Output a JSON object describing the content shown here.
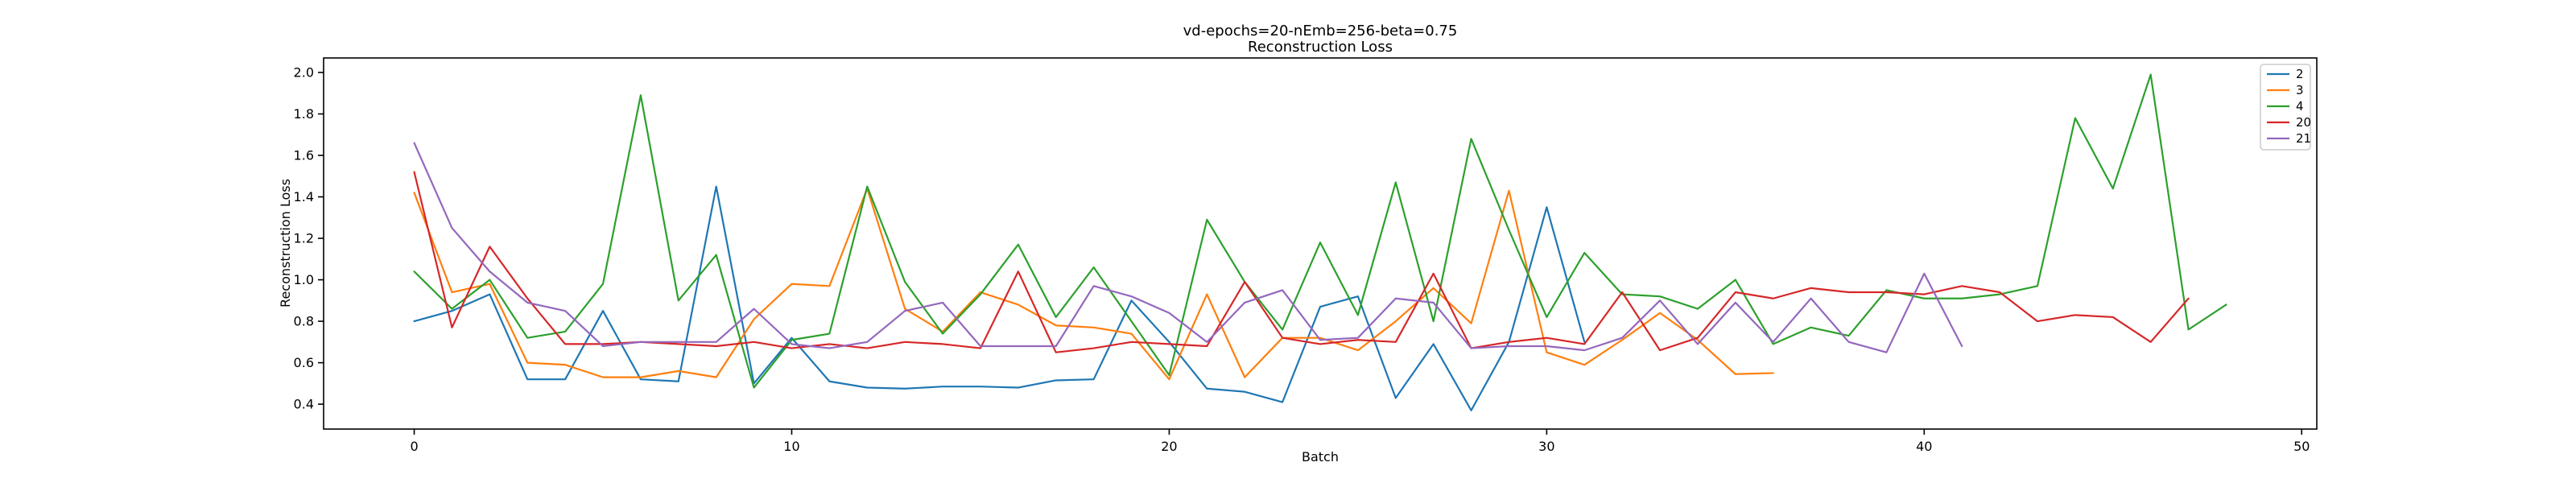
{
  "chart_data": {
    "type": "line",
    "title": "vd-epochs=20-nEmb=256-beta=0.75",
    "subtitle": "Reconstruction Loss",
    "xlabel": "Batch",
    "ylabel": "Reconstruction Loss",
    "xlim": [
      -2.4,
      50.4
    ],
    "ylim": [
      0.28,
      2.07
    ],
    "xticks": [
      0,
      10,
      20,
      30,
      40,
      50
    ],
    "yticks": [
      0.4,
      0.6,
      0.8,
      1.0,
      1.2,
      1.4,
      1.6,
      1.8,
      2.0
    ],
    "xtick_labels": [
      "0",
      "10",
      "20",
      "30",
      "40",
      "50"
    ],
    "ytick_labels": [
      "0.4",
      "0.6",
      "0.8",
      "1.0",
      "1.2",
      "1.4",
      "1.6",
      "1.8",
      "2.0"
    ],
    "grid": false,
    "legend_position": "top-right",
    "series": [
      {
        "name": "2",
        "color": "#1f77b4",
        "values": [
          0.8,
          0.85,
          0.93,
          0.52,
          0.52,
          0.85,
          0.52,
          0.51,
          1.45,
          0.5,
          0.72,
          0.51,
          0.48,
          0.475,
          0.485,
          0.485,
          0.48,
          0.515,
          0.52,
          0.9,
          0.7,
          0.475,
          0.46,
          0.41,
          0.87,
          0.92,
          0.43,
          0.69,
          0.37,
          0.7,
          1.35,
          0.7
        ]
      },
      {
        "name": "3",
        "color": "#ff7f0e",
        "values": [
          1.42,
          0.94,
          0.98,
          0.6,
          0.59,
          0.53,
          0.53,
          0.56,
          0.53,
          0.81,
          0.98,
          0.97,
          1.44,
          0.86,
          0.75,
          0.94,
          0.88,
          0.78,
          0.77,
          0.74,
          0.52,
          0.93,
          0.53,
          0.72,
          0.72,
          0.66,
          0.8,
          0.96,
          0.79,
          1.43,
          0.65,
          0.59,
          0.71,
          0.84,
          0.71,
          0.545,
          0.55
        ]
      },
      {
        "name": "4",
        "color": "#2ca02c",
        "values": [
          1.04,
          0.86,
          1.0,
          0.72,
          0.75,
          0.98,
          1.89,
          0.9,
          1.12,
          0.48,
          0.71,
          0.74,
          1.45,
          0.99,
          0.74,
          0.93,
          1.17,
          0.82,
          1.06,
          0.8,
          0.54,
          1.29,
          0.99,
          0.76,
          1.18,
          0.83,
          1.47,
          0.8,
          1.68,
          1.24,
          0.82,
          1.13,
          0.93,
          0.92,
          0.86,
          1.0,
          0.69,
          0.77,
          0.73,
          0.95,
          0.91,
          0.91,
          0.93,
          0.97,
          1.78,
          1.44,
          1.99,
          0.76,
          0.88
        ]
      },
      {
        "name": "20",
        "color": "#d62728",
        "values": [
          1.52,
          0.77,
          1.16,
          0.91,
          0.69,
          0.69,
          0.7,
          0.69,
          0.68,
          0.7,
          0.67,
          0.69,
          0.67,
          0.7,
          0.69,
          0.67,
          1.04,
          0.65,
          0.67,
          0.7,
          0.69,
          0.68,
          0.99,
          0.72,
          0.69,
          0.71,
          0.7,
          1.03,
          0.67,
          0.7,
          0.72,
          0.69,
          0.94,
          0.66,
          0.72,
          0.94,
          0.91,
          0.96,
          0.94,
          0.94,
          0.93,
          0.97,
          0.94,
          0.8,
          0.83,
          0.82,
          0.7,
          0.91
        ]
      },
      {
        "name": "21",
        "color": "#9467bd",
        "values": [
          1.66,
          1.25,
          1.04,
          0.89,
          0.85,
          0.68,
          0.7,
          0.7,
          0.7,
          0.86,
          0.69,
          0.67,
          0.7,
          0.85,
          0.89,
          0.68,
          0.68,
          0.68,
          0.97,
          0.92,
          0.84,
          0.7,
          0.89,
          0.95,
          0.71,
          0.72,
          0.91,
          0.89,
          0.67,
          0.68,
          0.68,
          0.66,
          0.72,
          0.9,
          0.69,
          0.89,
          0.7,
          0.91,
          0.7,
          0.65,
          1.03,
          0.68
        ]
      }
    ]
  }
}
